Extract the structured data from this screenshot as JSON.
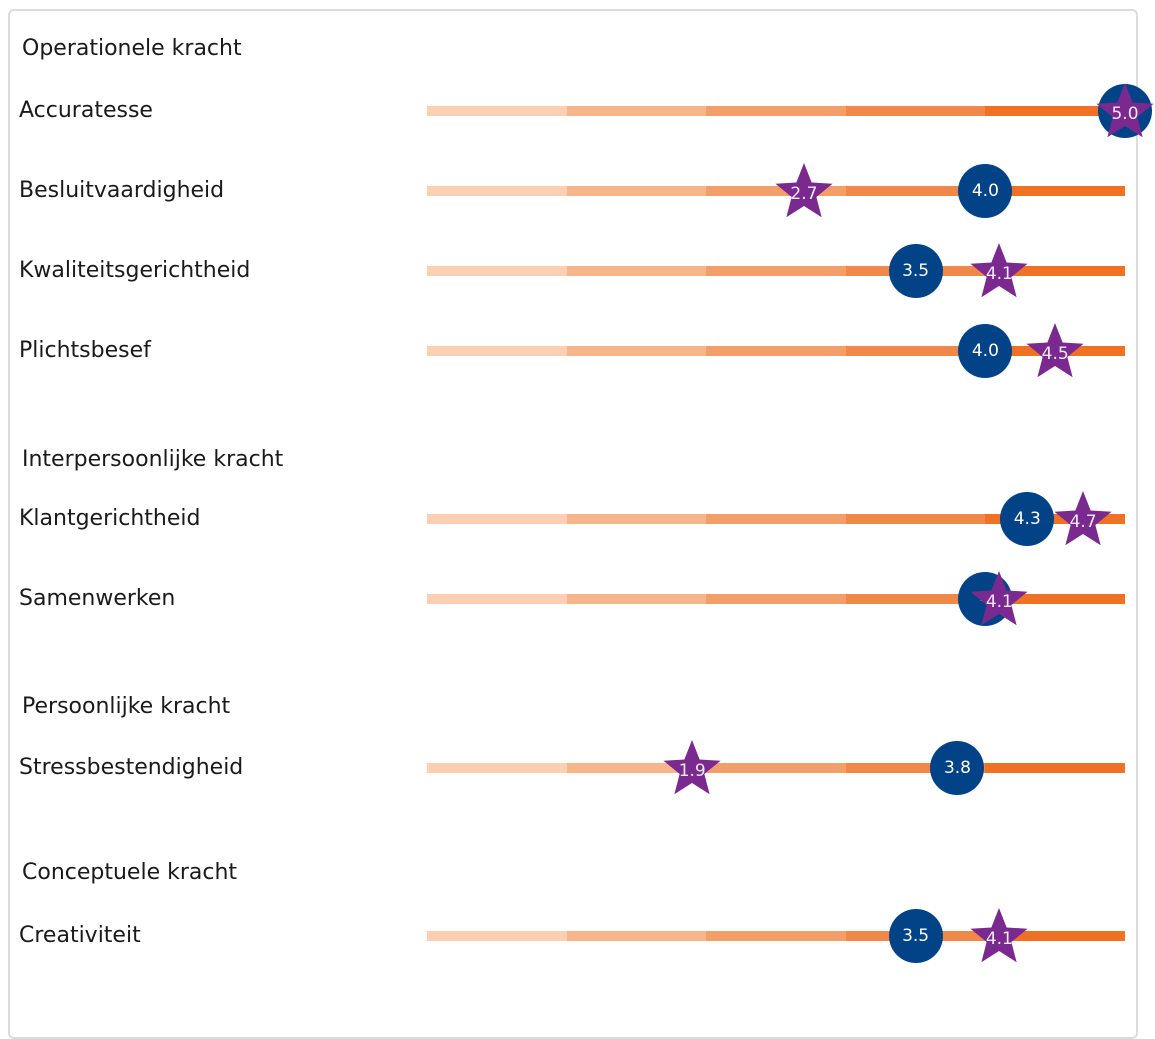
{
  "colors": {
    "circle": "#024287",
    "star": "#7a2a8f",
    "scale": [
      "#fbcfb4",
      "#f7b58c",
      "#f39f6a",
      "#f08849",
      "#ef7124"
    ]
  },
  "marker_shapes": {
    "circle_icon": "circle-icon",
    "star_icon": "star-icon"
  },
  "scale": {
    "min": 0,
    "max": 5
  },
  "sections": [
    {
      "title": "Operationele kracht",
      "rows": [
        {
          "label": "Accuratesse",
          "circle": 5.0,
          "circle_label": "",
          "star": 5.0,
          "star_label": "5.0"
        },
        {
          "label": "Besluitvaardigheid",
          "circle": 4.0,
          "circle_label": "4.0",
          "star": 2.7,
          "star_label": "2.7"
        },
        {
          "label": "Kwaliteitsgerichtheid",
          "circle": 3.5,
          "circle_label": "3.5",
          "star": 4.1,
          "star_label": "4.1"
        },
        {
          "label": "Plichtsbesef",
          "circle": 4.0,
          "circle_label": "4.0",
          "star": 4.5,
          "star_label": "4.5"
        }
      ]
    },
    {
      "title": "Interpersoonlijke kracht",
      "rows": [
        {
          "label": "Klantgerichtheid",
          "circle": 4.3,
          "circle_label": "4.3",
          "star": 4.7,
          "star_label": "4.7"
        },
        {
          "label": "Samenwerken",
          "circle": 4.0,
          "circle_label": "4",
          "star": 4.1,
          "star_label": "4.1"
        }
      ]
    },
    {
      "title": "Persoonlijke kracht",
      "rows": [
        {
          "label": "Stressbestendigheid",
          "circle": 3.8,
          "circle_label": "3.8",
          "star": 1.9,
          "star_label": "1.9"
        }
      ]
    },
    {
      "title": "Conceptuele kracht",
      "rows": [
        {
          "label": "Creativiteit",
          "circle": 3.5,
          "circle_label": "3.5",
          "star": 4.1,
          "star_label": "4.1"
        }
      ]
    }
  ]
}
